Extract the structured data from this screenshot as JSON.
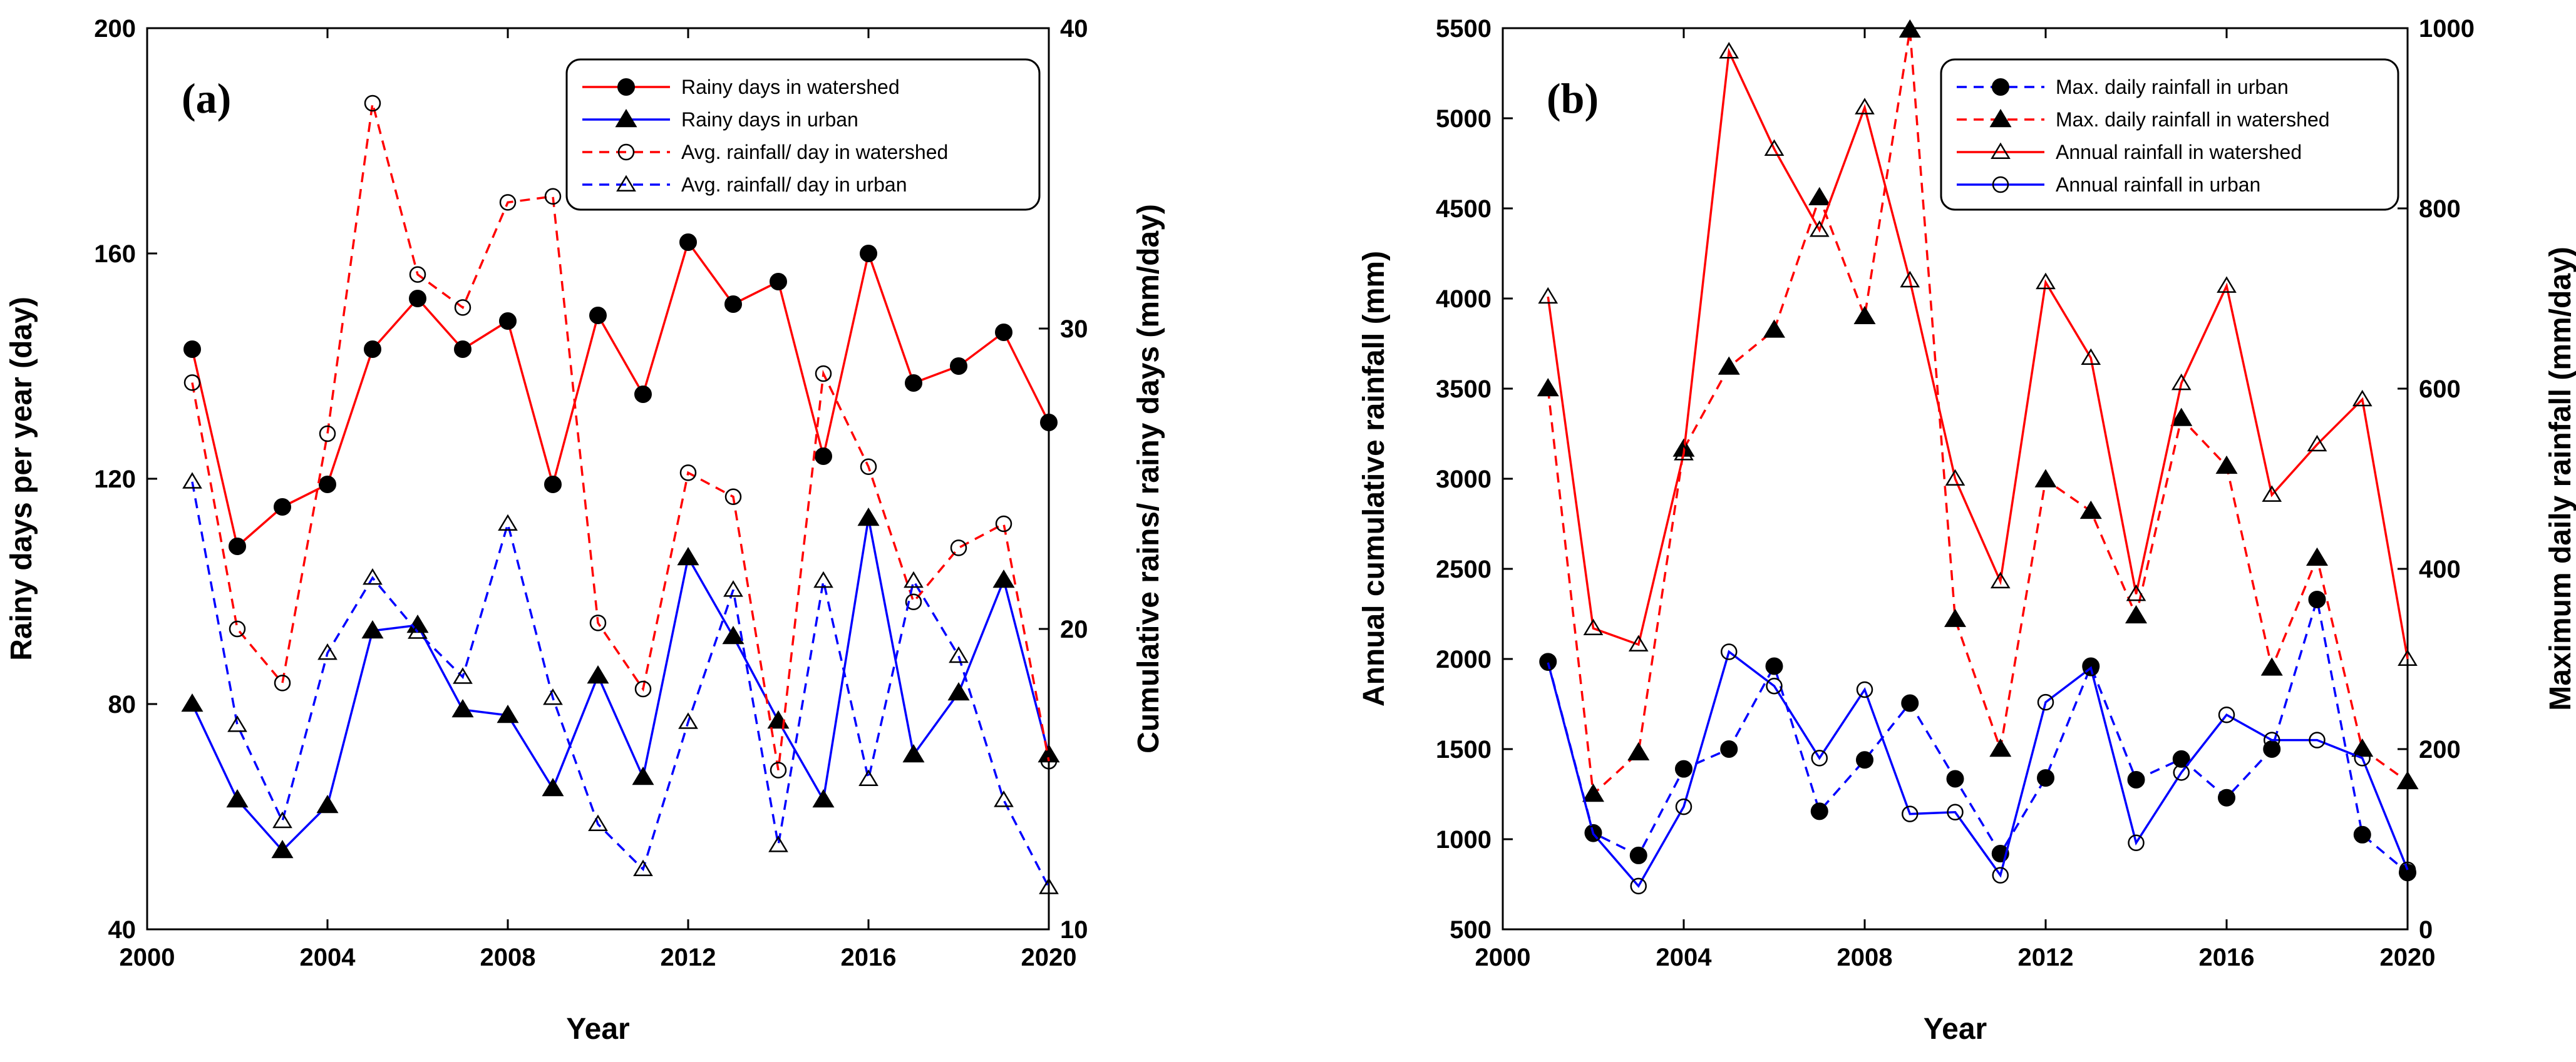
{
  "chart_data": [
    {
      "type": "line",
      "panel_label": "(a)",
      "xlabel": "Year",
      "ylabel_left": "Rainy days per year (day)",
      "ylabel_right": "Cumulative rains/ rainy days (mm/day)",
      "xlim": [
        2000,
        2020
      ],
      "ylim_left": [
        40,
        200
      ],
      "ylim_right": [
        10,
        40
      ],
      "xticks": [
        2000,
        2004,
        2008,
        2012,
        2016,
        2020
      ],
      "yticks_left": [
        40,
        80,
        120,
        160,
        200
      ],
      "yticks_right": [
        10,
        20,
        30,
        40
      ],
      "legend_position": "top-right",
      "x": [
        2001,
        2002,
        2003,
        2004,
        2005,
        2006,
        2007,
        2008,
        2009,
        2010,
        2011,
        2012,
        2013,
        2014,
        2015,
        2016,
        2017,
        2018,
        2019,
        2020
      ],
      "series": [
        {
          "name": "Rainy days in watershed",
          "axis": "left",
          "color": "#ff0000",
          "dash": "solid",
          "marker": "circle-filled",
          "values": [
            143,
            108,
            115,
            119,
            143,
            152,
            143,
            148,
            119,
            149,
            135,
            162,
            151,
            155,
            124,
            160,
            137,
            140,
            146,
            130
          ]
        },
        {
          "name": "Rainy days in urban",
          "axis": "left",
          "color": "#0000ff",
          "dash": "solid",
          "marker": "triangle-filled",
          "values": [
            80,
            63,
            54,
            62,
            93,
            94,
            79,
            78,
            65,
            85,
            67,
            106,
            92,
            77,
            63,
            113,
            71,
            82,
            102,
            71
          ]
        },
        {
          "name": "Avg. rainfall/ day in watershed",
          "axis": "right",
          "color": "#ff0000",
          "dash": "dashed",
          "marker": "circle-open",
          "values": [
            28.2,
            20.0,
            18.2,
            26.5,
            37.5,
            31.8,
            30.7,
            34.2,
            34.4,
            20.2,
            18.0,
            25.2,
            24.4,
            15.3,
            28.5,
            25.4,
            20.9,
            22.7,
            23.5,
            15.6
          ]
        },
        {
          "name": "Avg. rainfall/ day in urban",
          "axis": "right",
          "color": "#0000ff",
          "dash": "dashed",
          "marker": "triangle-open",
          "values": [
            24.9,
            16.8,
            13.6,
            19.2,
            21.7,
            19.9,
            18.4,
            23.5,
            17.7,
            13.5,
            12.0,
            16.9,
            21.3,
            12.8,
            21.6,
            15.0,
            21.6,
            19.1,
            14.3,
            11.4
          ]
        }
      ]
    },
    {
      "type": "line",
      "panel_label": "(b)",
      "xlabel": "Year",
      "ylabel_left": "Annual cumulative rainfall (mm)",
      "ylabel_right": "Maximum daily rainfall (mm/day)",
      "xlim": [
        2000,
        2020
      ],
      "ylim_left": [
        500,
        5500
      ],
      "ylim_right": [
        0,
        1000
      ],
      "xticks": [
        2000,
        2004,
        2008,
        2012,
        2016,
        2020
      ],
      "yticks_left": [
        500,
        1000,
        1500,
        2000,
        2500,
        3000,
        3500,
        4000,
        4500,
        5000,
        5500
      ],
      "yticks_right": [
        0,
        200,
        400,
        600,
        800,
        1000
      ],
      "legend_position": "top-right",
      "x": [
        2001,
        2002,
        2003,
        2004,
        2005,
        2006,
        2007,
        2008,
        2009,
        2010,
        2011,
        2012,
        2013,
        2014,
        2015,
        2016,
        2017,
        2018,
        2019,
        2020
      ],
      "series": [
        {
          "name": "Max. daily rainfall in urban",
          "axis": "right",
          "color": "#0000ff",
          "dash": "dashed",
          "marker": "circle-filled",
          "values": [
            297,
            107,
            82,
            178,
            200,
            292,
            131,
            188,
            251,
            167,
            84,
            168,
            292,
            166,
            189,
            146,
            200,
            366,
            105,
            63
          ]
        },
        {
          "name": "Max. daily rainfall in watershed",
          "axis": "right",
          "color": "#ff0000",
          "dash": "dashed",
          "marker": "triangle-filled",
          "values": [
            600,
            150,
            196,
            533,
            624,
            665,
            812,
            680,
            998,
            344,
            200,
            499,
            464,
            348,
            567,
            514,
            290,
            412,
            200,
            164
          ]
        },
        {
          "name": "Annual rainfall in watershed",
          "axis": "left",
          "color": "#ff0000",
          "dash": "solid",
          "marker": "triangle-open",
          "values": [
            4010,
            2170,
            2080,
            3140,
            5370,
            4830,
            4380,
            5060,
            4100,
            3000,
            2430,
            4090,
            3670,
            2360,
            3530,
            4070,
            2910,
            3190,
            3440,
            2000
          ]
        },
        {
          "name": "Annual rainfall in urban",
          "axis": "left",
          "color": "#0000ff",
          "dash": "solid",
          "marker": "circle-open",
          "values": [
            1980,
            1030,
            740,
            1180,
            2040,
            1850,
            1450,
            1830,
            1140,
            1150,
            800,
            1760,
            1950,
            980,
            1370,
            1690,
            1550,
            1550,
            1450,
            830
          ]
        }
      ]
    }
  ]
}
